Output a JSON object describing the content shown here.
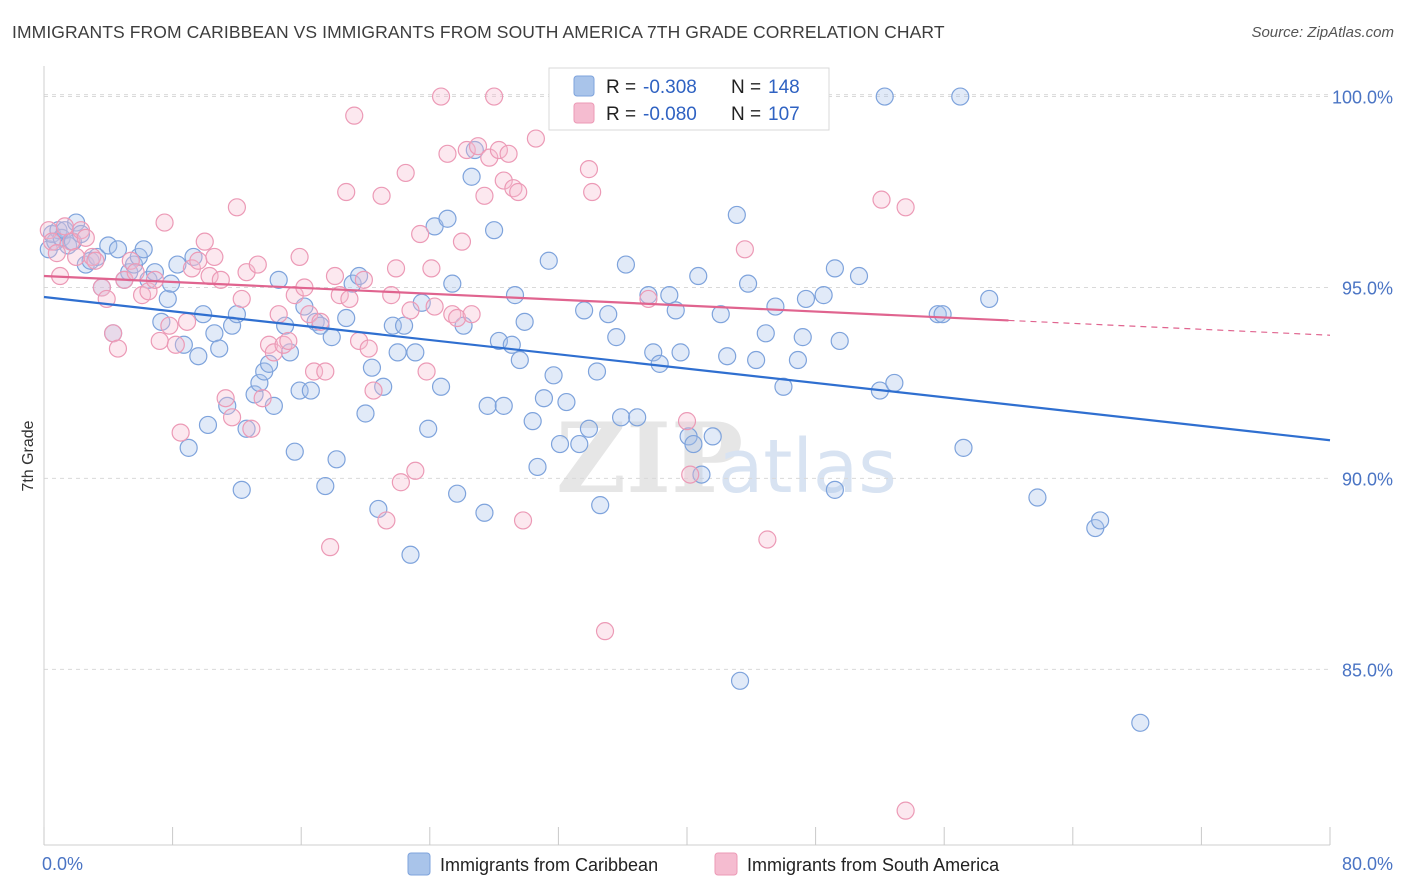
{
  "title": "IMMIGRANTS FROM CARIBBEAN VS IMMIGRANTS FROM SOUTH AMERICA 7TH GRADE CORRELATION CHART",
  "source": "Source: ZipAtlas.com",
  "watermark": {
    "zip": "ZIP",
    "atlas": "atlas"
  },
  "legend": {
    "r_label": "R =",
    "n_label": "N =",
    "series1": {
      "r": "-0.308",
      "n": "148"
    },
    "series2": {
      "r": "-0.080",
      "n": "107"
    }
  },
  "colors": {
    "blue_stroke": "#7ea3dc",
    "blue_fill": "#a9c4ea",
    "blue_line": "#2f6fd0",
    "pink_stroke": "#ec9ab6",
    "pink_fill": "#f5bcd0",
    "pink_line": "#e0648f",
    "grid": "#d9d9d9",
    "tick_label": "#4a74c4"
  },
  "chart_data": {
    "type": "scatter",
    "title": "IMMIGRANTS FROM CARIBBEAN VS IMMIGRANTS FROM SOUTH AMERICA 7TH GRADE CORRELATION CHART",
    "xlabel": "",
    "ylabel": "7th Grade",
    "xlim": [
      0,
      80
    ],
    "ylim": [
      80.4,
      100.8
    ],
    "x_tick_labels": [
      "0.0%",
      "80.0%"
    ],
    "y_ticks": [
      85,
      90,
      95,
      100
    ],
    "y_tick_labels": [
      "85.0%",
      "90.0%",
      "95.0%",
      "100.0%"
    ],
    "grid": "horizontal dashed",
    "legend_placement": "top-center",
    "series": [
      {
        "name": "Immigrants from Caribbean",
        "color": "#a9c4ea",
        "R": -0.308,
        "N": 148,
        "trend": {
          "x": [
            0,
            80
          ],
          "y": [
            94.75,
            91.0
          ]
        },
        "points": [
          [
            0.3,
            96.0
          ],
          [
            0.5,
            96.4
          ],
          [
            0.7,
            96.2
          ],
          [
            0.9,
            96.5
          ],
          [
            1.1,
            96.3
          ],
          [
            1.3,
            96.5
          ],
          [
            1.5,
            96.1
          ],
          [
            1.8,
            96.2
          ],
          [
            2.0,
            96.7
          ],
          [
            2.3,
            96.4
          ],
          [
            2.6,
            95.6
          ],
          [
            2.9,
            95.7
          ],
          [
            3.3,
            95.8
          ],
          [
            3.6,
            95.0
          ],
          [
            4.0,
            96.1
          ],
          [
            4.3,
            93.8
          ],
          [
            4.6,
            96.0
          ],
          [
            5.0,
            95.2
          ],
          [
            5.3,
            95.4
          ],
          [
            5.6,
            95.6
          ],
          [
            5.9,
            95.8
          ],
          [
            6.2,
            96.0
          ],
          [
            6.5,
            95.2
          ],
          [
            6.9,
            95.4
          ],
          [
            7.3,
            94.1
          ],
          [
            7.7,
            94.7
          ],
          [
            7.9,
            95.1
          ],
          [
            8.3,
            95.6
          ],
          [
            8.7,
            93.5
          ],
          [
            9.0,
            90.8
          ],
          [
            9.3,
            95.8
          ],
          [
            9.6,
            93.2
          ],
          [
            9.9,
            94.3
          ],
          [
            10.2,
            91.4
          ],
          [
            10.6,
            93.8
          ],
          [
            10.9,
            93.4
          ],
          [
            11.4,
            91.9
          ],
          [
            11.7,
            94.0
          ],
          [
            12.0,
            94.3
          ],
          [
            12.3,
            89.7
          ],
          [
            12.6,
            91.3
          ],
          [
            13.1,
            92.2
          ],
          [
            13.4,
            92.5
          ],
          [
            13.7,
            92.8
          ],
          [
            14.0,
            93.0
          ],
          [
            14.3,
            91.9
          ],
          [
            14.6,
            95.2
          ],
          [
            15.0,
            94.0
          ],
          [
            15.3,
            93.3
          ],
          [
            15.6,
            90.7
          ],
          [
            15.9,
            92.3
          ],
          [
            16.2,
            94.5
          ],
          [
            16.6,
            92.3
          ],
          [
            16.9,
            94.1
          ],
          [
            17.2,
            94.0
          ],
          [
            17.5,
            89.8
          ],
          [
            17.9,
            93.7
          ],
          [
            18.2,
            90.5
          ],
          [
            18.8,
            94.2
          ],
          [
            19.2,
            95.1
          ],
          [
            19.6,
            95.3
          ],
          [
            20.0,
            91.7
          ],
          [
            20.4,
            92.9
          ],
          [
            20.8,
            89.2
          ],
          [
            21.1,
            92.4
          ],
          [
            21.7,
            94.0
          ],
          [
            22.0,
            93.3
          ],
          [
            22.4,
            94.0
          ],
          [
            22.8,
            88.0
          ],
          [
            23.1,
            93.3
          ],
          [
            23.5,
            94.6
          ],
          [
            23.9,
            91.3
          ],
          [
            24.3,
            96.6
          ],
          [
            24.7,
            92.4
          ],
          [
            25.1,
            96.8
          ],
          [
            25.4,
            95.1
          ],
          [
            25.7,
            89.6
          ],
          [
            26.1,
            94.0
          ],
          [
            26.6,
            97.9
          ],
          [
            26.8,
            98.6
          ],
          [
            27.4,
            89.1
          ],
          [
            27.6,
            91.9
          ],
          [
            28.0,
            96.5
          ],
          [
            28.3,
            93.6
          ],
          [
            28.6,
            91.9
          ],
          [
            29.1,
            93.5
          ],
          [
            29.3,
            94.8
          ],
          [
            29.6,
            93.1
          ],
          [
            29.9,
            94.1
          ],
          [
            30.4,
            91.5
          ],
          [
            30.7,
            90.3
          ],
          [
            31.1,
            92.1
          ],
          [
            31.4,
            95.7
          ],
          [
            31.7,
            92.7
          ],
          [
            32.1,
            90.9
          ],
          [
            32.5,
            92.0
          ],
          [
            33.3,
            90.9
          ],
          [
            33.6,
            94.4
          ],
          [
            33.9,
            91.3
          ],
          [
            34.4,
            92.8
          ],
          [
            34.6,
            89.3
          ],
          [
            35.1,
            94.3
          ],
          [
            35.6,
            93.7
          ],
          [
            35.9,
            91.6
          ],
          [
            36.2,
            95.6
          ],
          [
            36.9,
            91.6
          ],
          [
            37.6,
            94.8
          ],
          [
            37.9,
            93.3
          ],
          [
            38.3,
            93.0
          ],
          [
            38.9,
            94.8
          ],
          [
            39.3,
            94.4
          ],
          [
            39.6,
            93.3
          ],
          [
            40.1,
            91.1
          ],
          [
            40.4,
            90.9
          ],
          [
            40.7,
            95.3
          ],
          [
            40.9,
            90.1
          ],
          [
            41.6,
            91.1
          ],
          [
            42.1,
            94.3
          ],
          [
            42.5,
            93.2
          ],
          [
            43.1,
            96.9
          ],
          [
            43.3,
            84.7
          ],
          [
            43.8,
            95.1
          ],
          [
            44.3,
            93.1
          ],
          [
            44.9,
            93.8
          ],
          [
            45.5,
            94.5
          ],
          [
            46.0,
            92.4
          ],
          [
            46.9,
            93.1
          ],
          [
            47.2,
            93.7
          ],
          [
            47.4,
            94.7
          ],
          [
            48.5,
            94.8
          ],
          [
            49.2,
            89.7
          ],
          [
            49.2,
            95.5
          ],
          [
            49.5,
            93.6
          ],
          [
            50.7,
            95.3
          ],
          [
            52.0,
            92.3
          ],
          [
            52.3,
            100.0
          ],
          [
            52.9,
            92.5
          ],
          [
            55.6,
            94.3
          ],
          [
            55.9,
            94.3
          ],
          [
            57.0,
            100.0
          ],
          [
            57.2,
            90.8
          ],
          [
            58.8,
            94.7
          ],
          [
            61.8,
            89.5
          ],
          [
            65.4,
            88.7
          ],
          [
            65.7,
            88.9
          ],
          [
            68.2,
            83.6
          ]
        ]
      },
      {
        "name": "Immigrants from South America",
        "color": "#f5bcd0",
        "R": -0.08,
        "N": 107,
        "trend": {
          "x": [
            0,
            80
          ],
          "y": [
            95.3,
            93.75
          ]
        },
        "trend_solid_until_x": 60,
        "points": [
          [
            0.3,
            96.5
          ],
          [
            0.5,
            96.2
          ],
          [
            0.8,
            95.9
          ],
          [
            1.0,
            95.3
          ],
          [
            1.3,
            96.6
          ],
          [
            1.7,
            96.2
          ],
          [
            2.0,
            95.8
          ],
          [
            2.3,
            96.5
          ],
          [
            2.6,
            96.3
          ],
          [
            3.0,
            95.8
          ],
          [
            3.2,
            95.7
          ],
          [
            3.6,
            95.0
          ],
          [
            3.9,
            94.7
          ],
          [
            4.3,
            93.8
          ],
          [
            4.6,
            93.4
          ],
          [
            5.0,
            95.2
          ],
          [
            5.4,
            95.7
          ],
          [
            5.7,
            95.4
          ],
          [
            6.1,
            94.8
          ],
          [
            6.5,
            94.9
          ],
          [
            6.9,
            95.2
          ],
          [
            7.2,
            93.6
          ],
          [
            7.5,
            96.7
          ],
          [
            7.8,
            94.0
          ],
          [
            8.2,
            93.5
          ],
          [
            8.5,
            91.2
          ],
          [
            8.9,
            94.1
          ],
          [
            9.2,
            95.5
          ],
          [
            9.6,
            95.7
          ],
          [
            10.0,
            96.2
          ],
          [
            10.3,
            95.3
          ],
          [
            10.6,
            95.8
          ],
          [
            11.0,
            95.2
          ],
          [
            11.3,
            92.1
          ],
          [
            11.7,
            91.6
          ],
          [
            12.0,
            97.1
          ],
          [
            12.3,
            94.7
          ],
          [
            12.6,
            95.4
          ],
          [
            12.9,
            91.3
          ],
          [
            13.3,
            95.6
          ],
          [
            13.6,
            92.1
          ],
          [
            14.0,
            93.5
          ],
          [
            14.3,
            93.3
          ],
          [
            14.6,
            94.3
          ],
          [
            14.9,
            93.5
          ],
          [
            15.2,
            93.6
          ],
          [
            15.6,
            94.8
          ],
          [
            15.9,
            95.8
          ],
          [
            16.2,
            95.0
          ],
          [
            16.5,
            94.3
          ],
          [
            16.8,
            92.8
          ],
          [
            17.2,
            94.1
          ],
          [
            17.5,
            92.8
          ],
          [
            17.8,
            88.2
          ],
          [
            18.1,
            95.3
          ],
          [
            18.4,
            94.8
          ],
          [
            18.8,
            97.5
          ],
          [
            19.0,
            94.7
          ],
          [
            19.3,
            99.5
          ],
          [
            19.6,
            93.6
          ],
          [
            19.9,
            95.2
          ],
          [
            20.2,
            93.4
          ],
          [
            20.5,
            92.3
          ],
          [
            21.0,
            97.4
          ],
          [
            21.3,
            88.9
          ],
          [
            21.6,
            94.8
          ],
          [
            21.9,
            95.5
          ],
          [
            22.2,
            89.9
          ],
          [
            22.5,
            98.0
          ],
          [
            22.8,
            94.4
          ],
          [
            23.1,
            90.2
          ],
          [
            23.4,
            96.4
          ],
          [
            23.8,
            92.8
          ],
          [
            24.1,
            95.5
          ],
          [
            24.3,
            94.5
          ],
          [
            24.7,
            100.0
          ],
          [
            25.1,
            98.5
          ],
          [
            25.4,
            94.3
          ],
          [
            25.7,
            94.2
          ],
          [
            26.0,
            96.2
          ],
          [
            26.3,
            98.6
          ],
          [
            26.6,
            94.3
          ],
          [
            27.0,
            98.7
          ],
          [
            27.4,
            97.4
          ],
          [
            27.7,
            98.4
          ],
          [
            28.0,
            100.0
          ],
          [
            28.3,
            98.6
          ],
          [
            28.6,
            97.8
          ],
          [
            28.9,
            98.5
          ],
          [
            29.2,
            97.6
          ],
          [
            29.5,
            97.5
          ],
          [
            29.8,
            88.9
          ],
          [
            30.6,
            98.9
          ],
          [
            32.0,
            99.8
          ],
          [
            32.6,
            99.8
          ],
          [
            33.9,
            98.1
          ],
          [
            34.1,
            97.5
          ],
          [
            34.8,
            99.8
          ],
          [
            34.9,
            86.0
          ],
          [
            35.6,
            99.8
          ],
          [
            37.6,
            94.7
          ],
          [
            40.0,
            91.5
          ],
          [
            40.2,
            90.1
          ],
          [
            43.6,
            96.0
          ],
          [
            45.0,
            88.4
          ],
          [
            52.1,
            97.3
          ],
          [
            53.6,
            97.1
          ],
          [
            53.6,
            81.3
          ]
        ]
      }
    ]
  },
  "bottom_legend": {
    "item1": "Immigrants from Caribbean",
    "item2": "Immigrants from South America"
  }
}
